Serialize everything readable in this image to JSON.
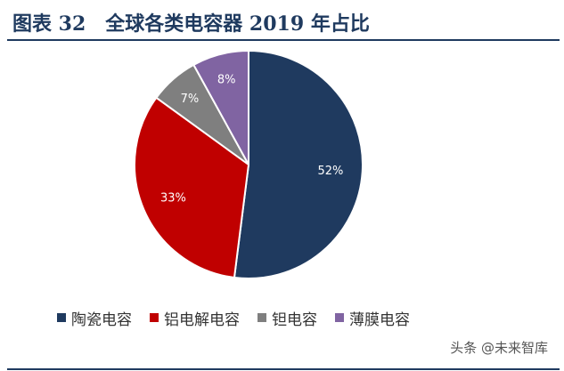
{
  "header": {
    "title": "图表 32　全球各类电容器 2019 年占比"
  },
  "chart_data": {
    "type": "pie",
    "slices": [
      {
        "label": "陶瓷电容",
        "value": 52,
        "display": "52%",
        "color": "#1f3a5f"
      },
      {
        "label": "铝电解电容",
        "value": 33,
        "display": "33%",
        "color": "#c00000"
      },
      {
        "label": "钽电容",
        "value": 7,
        "display": "7%",
        "color": "#7f7f7f"
      },
      {
        "label": "薄膜电容",
        "value": 8,
        "display": "8%",
        "color": "#8064a2"
      }
    ],
    "legend_position": "bottom"
  },
  "watermark": "头条 @未来智库"
}
